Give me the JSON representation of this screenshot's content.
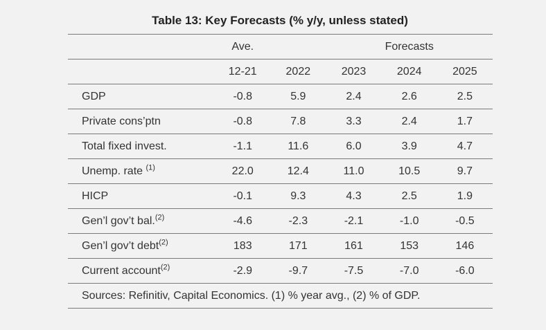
{
  "title": "Table 13: Key Forecasts (% y/y, unless stated)",
  "header": {
    "group_ave": "Ave.",
    "group_forecasts": "Forecasts",
    "columns": [
      "12-21",
      "2022",
      "2023",
      "2024",
      "2025"
    ]
  },
  "rows": [
    {
      "label": "GDP",
      "sup": "",
      "values": [
        "-0.8",
        "5.9",
        "2.4",
        "2.6",
        "2.5"
      ]
    },
    {
      "label": "Private cons’ptn",
      "sup": "",
      "values": [
        "-0.8",
        "7.8",
        "3.3",
        "2.4",
        "1.7"
      ]
    },
    {
      "label": "Total fixed invest.",
      "sup": "",
      "values": [
        "-1.1",
        "11.6",
        "6.0",
        "3.9",
        "4.7"
      ]
    },
    {
      "label": "Unemp. rate ",
      "sup": "(1)",
      "values": [
        "22.0",
        "12.4",
        "11.0",
        "10.5",
        "9.7"
      ]
    },
    {
      "label": "HICP",
      "sup": "",
      "values": [
        "-0.1",
        "9.3",
        "4.3",
        "2.5",
        "1.9"
      ]
    },
    {
      "label": "Gen’l gov’t bal.",
      "sup": "(2)",
      "values": [
        "-4.6",
        "-2.3",
        "-2.1",
        "-1.0",
        "-0.5"
      ]
    },
    {
      "label": "Gen’l gov’t debt",
      "sup": "(2)",
      "values": [
        "183",
        "171",
        "161",
        "153",
        "146"
      ]
    },
    {
      "label": "Current account",
      "sup": "(2)",
      "values": [
        "-2.9",
        "-9.7",
        "-7.5",
        "-7.0",
        "-6.0"
      ]
    }
  ],
  "footnote": "Sources: Refinitiv, Capital Economics. (1) % year avg., (2) % of GDP."
}
